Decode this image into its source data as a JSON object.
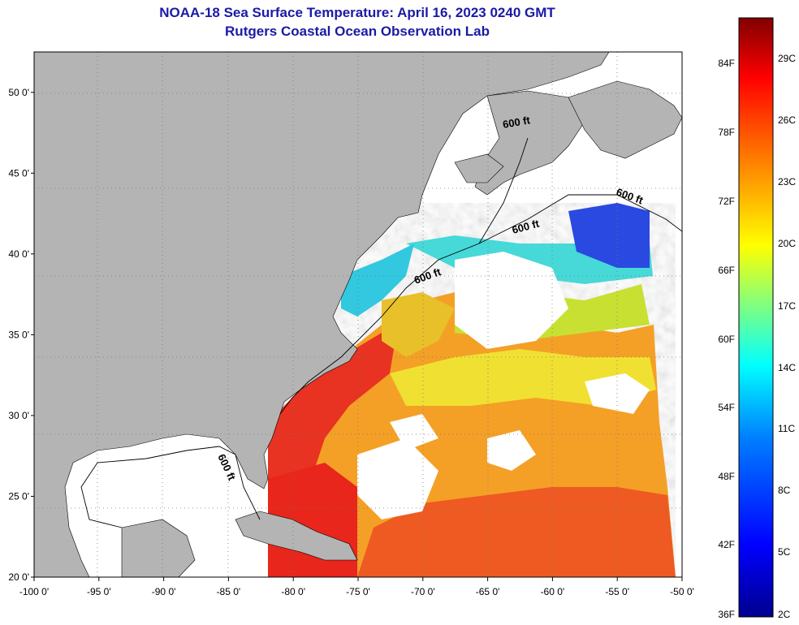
{
  "header": {
    "title": "NOAA-18 Sea Surface Temperature:  April 16, 2023 0240 GMT",
    "subtitle": "Rutgers Coastal Ocean Observation Lab"
  },
  "map": {
    "lon_range": [
      -100,
      -50
    ],
    "lat_range": [
      20,
      52.5
    ],
    "lon_ticks": [
      {
        "value": -100,
        "label": "-100 0'"
      },
      {
        "value": -95,
        "label": "-95 0'"
      },
      {
        "value": -90,
        "label": "-90 0'"
      },
      {
        "value": -85,
        "label": "-85 0'"
      },
      {
        "value": -80,
        "label": "-80 0'"
      },
      {
        "value": -75,
        "label": "-75 0'"
      },
      {
        "value": -70,
        "label": "-70 0'"
      },
      {
        "value": -65,
        "label": "-65 0'"
      },
      {
        "value": -60,
        "label": "-60 0'"
      },
      {
        "value": -55,
        "label": "-55 0'"
      },
      {
        "value": -50,
        "label": "-50 0'"
      }
    ],
    "lat_ticks": [
      {
        "value": 20,
        "label": "20 0'"
      },
      {
        "value": 25,
        "label": "25 0'"
      },
      {
        "value": 30,
        "label": "30 0'"
      },
      {
        "value": 35,
        "label": "35 0'"
      },
      {
        "value": 40,
        "label": "40 0'"
      },
      {
        "value": 45,
        "label": "45 0'"
      },
      {
        "value": 50,
        "label": "50 0'"
      }
    ],
    "contour_labels": [
      "600 ft",
      "600 ft",
      "600 ft",
      "600 ft",
      "600 ft"
    ],
    "colors": {
      "land": "#b4b4b4",
      "cloud_or_nodata": "#ffffff",
      "warm": "#e8281a",
      "orange": "#f59a1c",
      "yellow": "#f0ec2a",
      "cyan": "#2ad6e8",
      "blue": "#1a3ad0"
    }
  },
  "colorbar": {
    "fahrenheit_labels": [
      "84F",
      "78F",
      "72F",
      "66F",
      "60F",
      "54F",
      "48F",
      "42F",
      "36F"
    ],
    "celsius_labels": [
      "29C",
      "26C",
      "23C",
      "20C",
      "17C",
      "14C",
      "11C",
      "8C",
      "5C",
      "2C"
    ],
    "stops": [
      "#00008f",
      "#0000ff",
      "#0080ff",
      "#00ffff",
      "#80ff80",
      "#ffff00",
      "#ff8000",
      "#ff0000",
      "#800000"
    ]
  }
}
